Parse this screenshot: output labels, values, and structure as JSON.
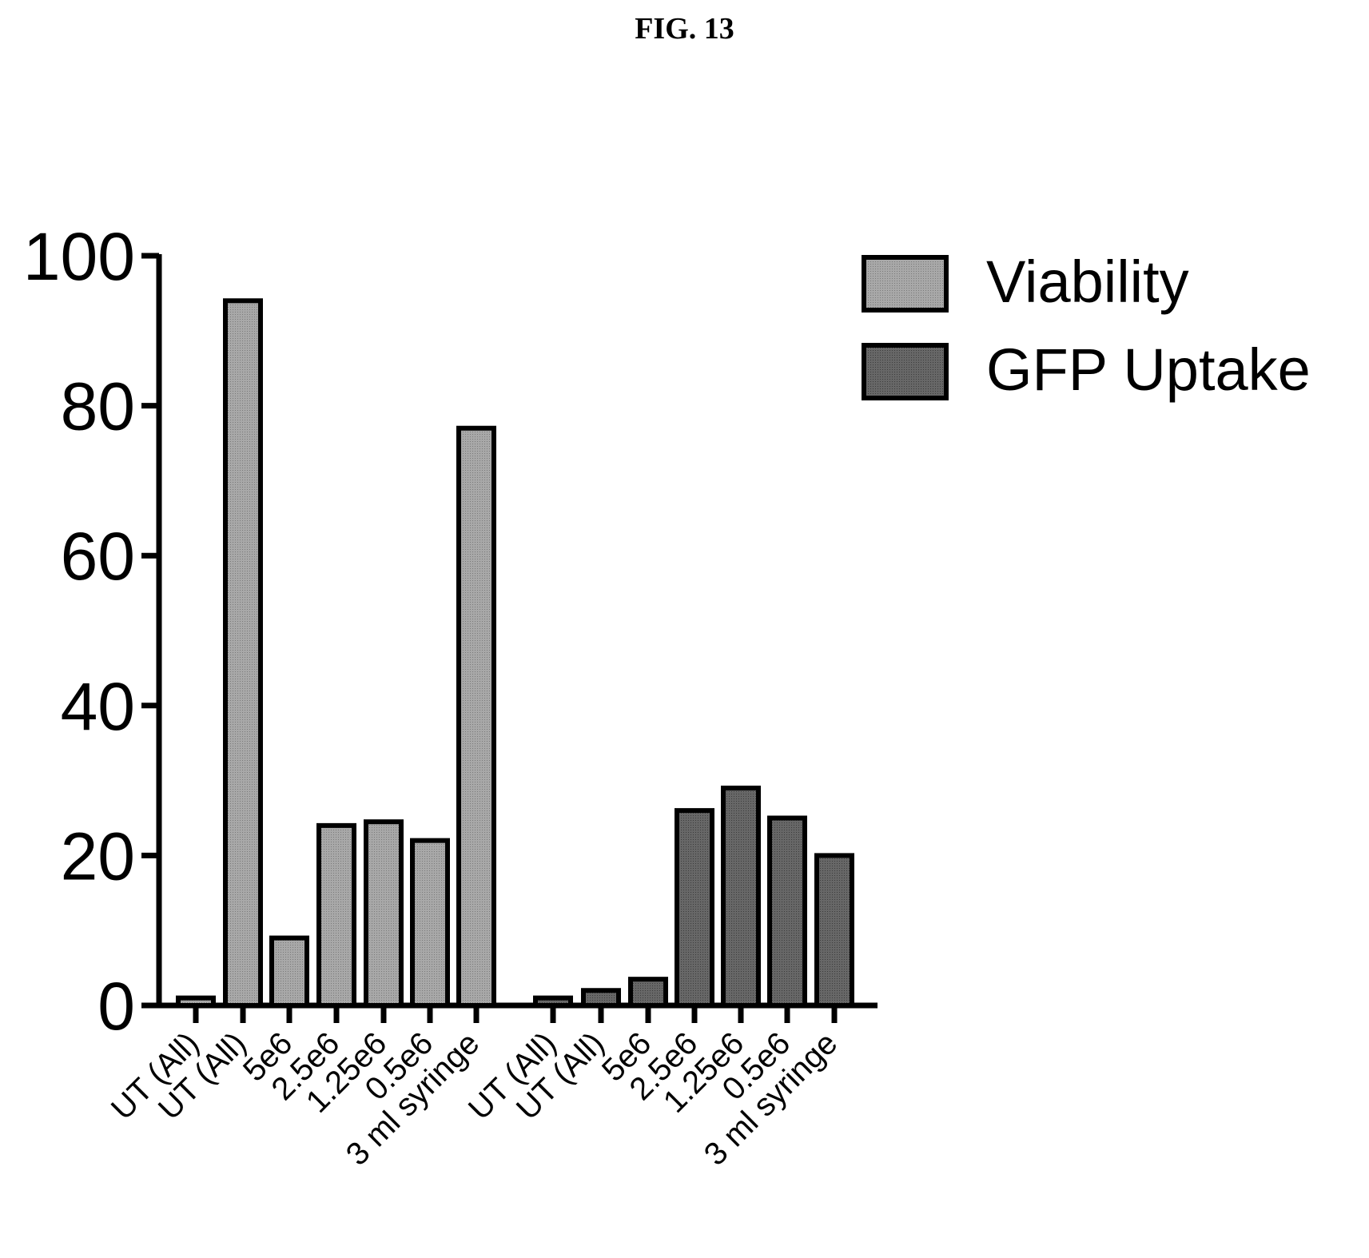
{
  "figure_label": "FIG. 13",
  "colors": {
    "viability": "#a3a3a3",
    "gfp_uptake": "#626262",
    "stroke": "#000000"
  },
  "chart_data": {
    "type": "bar",
    "title": "",
    "xlabel": "",
    "ylabel": "",
    "ylim": [
      0,
      100
    ],
    "y_ticks": [
      0,
      20,
      40,
      60,
      80,
      100
    ],
    "grid": false,
    "legend_position": "top-right",
    "series": [
      {
        "name": "Viability",
        "categories": [
          "UT (All)",
          "UT (All)",
          "5e6",
          "2.5e6",
          "1.25e6",
          "0.5e6",
          "3 ml syringe"
        ],
        "values": [
          1,
          94,
          9,
          24,
          24.5,
          22,
          77
        ]
      },
      {
        "name": "GFP Uptake",
        "categories": [
          "UT (All)",
          "UT (All)",
          "5e6",
          "2.5e6",
          "1.25e6",
          "0.5e6",
          "3 ml syringe"
        ],
        "values": [
          1,
          2,
          3.5,
          26,
          29,
          25,
          20
        ]
      }
    ]
  }
}
